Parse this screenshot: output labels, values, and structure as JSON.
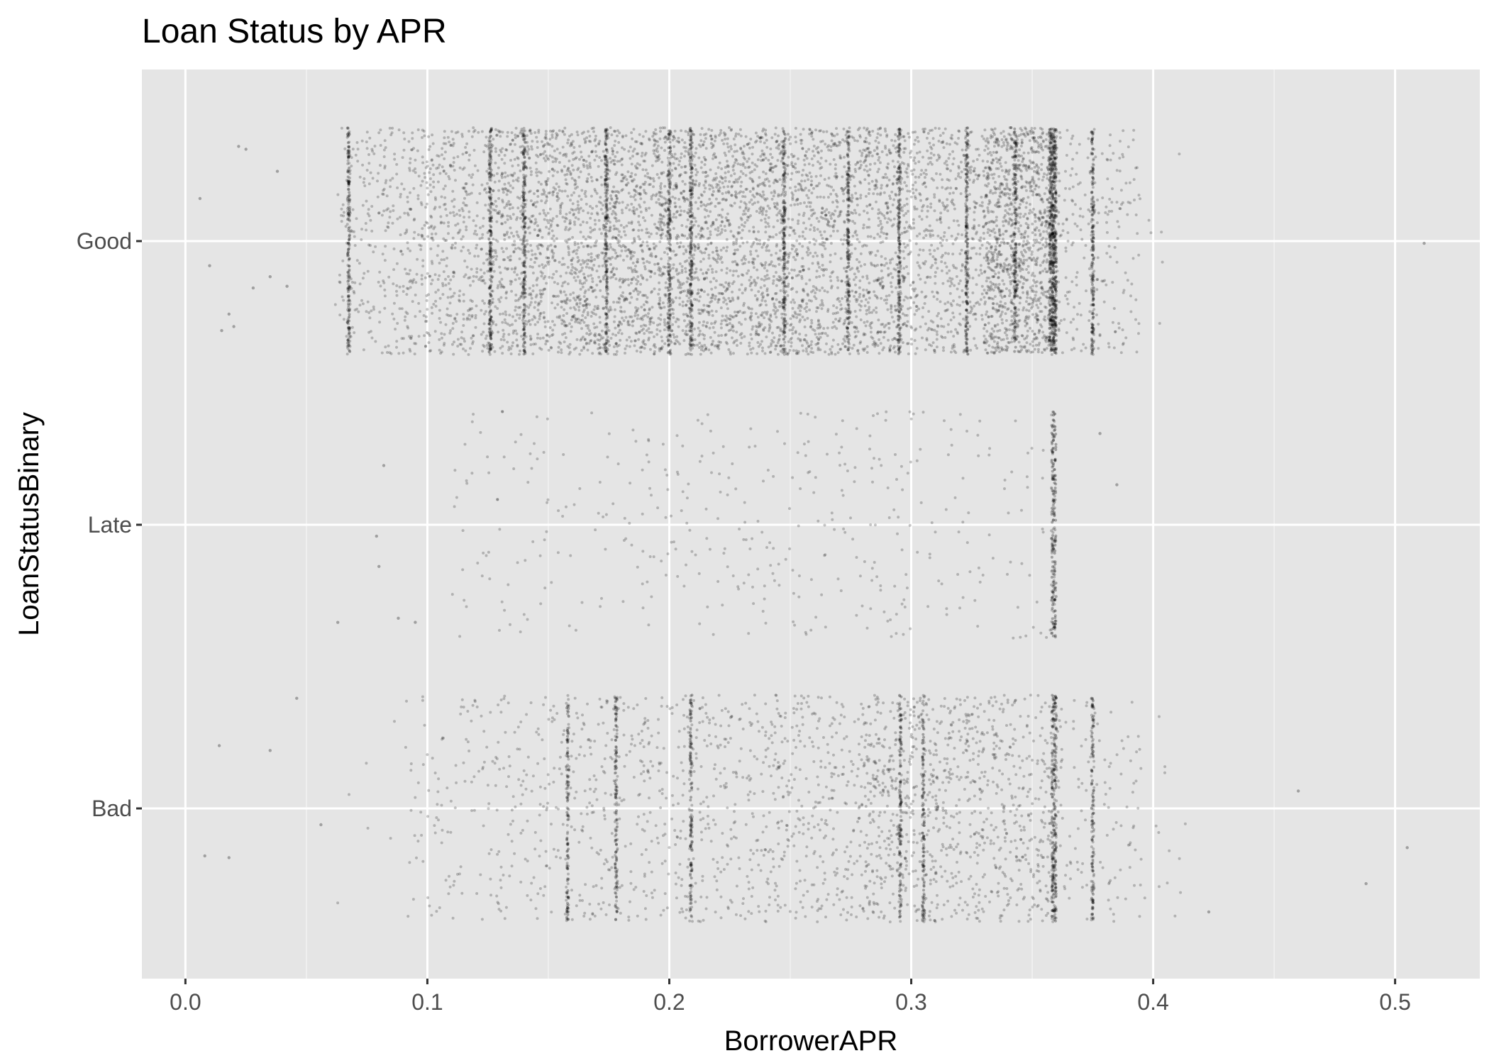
{
  "chart_data": {
    "type": "scatter",
    "title": "Loan Status by APR",
    "xlabel": "BorrowerAPR",
    "ylabel": "LoanStatusBinary",
    "xlim": [
      -0.018,
      0.535
    ],
    "x_ticks": [
      "0.0",
      "0.1",
      "0.2",
      "0.3",
      "0.4",
      "0.5"
    ],
    "categories": [
      "Good",
      "Late",
      "Bad"
    ],
    "grid": true,
    "legend": "none",
    "point_color": "#000000",
    "panel_color": "#e5e5e5",
    "series": [
      {
        "category": "Good",
        "jitter": true,
        "x_range": [
          0.006,
          0.512
        ],
        "approx_points": 72000,
        "dense_x": [
          0.0675,
          0.126,
          0.14,
          0.174,
          0.2,
          0.209,
          0.2475,
          0.274,
          0.295,
          0.323,
          0.343,
          0.3575,
          0.3585,
          0.3595,
          0.375
        ],
        "outliers_x": [
          0.006,
          0.01,
          0.015,
          0.018,
          0.02,
          0.022,
          0.025,
          0.028,
          0.035,
          0.038,
          0.042,
          0.512
        ]
      },
      {
        "category": "Late",
        "jitter": true,
        "x_range": [
          0.063,
          0.385
        ],
        "approx_points": 4000,
        "dense_x": [
          0.3585,
          0.3595
        ],
        "outliers_x": [
          0.063,
          0.079,
          0.08,
          0.082,
          0.088,
          0.095,
          0.378,
          0.385
        ]
      },
      {
        "category": "Bad",
        "jitter": true,
        "x_range": [
          0.008,
          0.505
        ],
        "approx_points": 22000,
        "dense_x": [
          0.158,
          0.178,
          0.209,
          0.2955,
          0.305,
          0.3585,
          0.3595,
          0.375
        ],
        "outliers_x": [
          0.008,
          0.014,
          0.018,
          0.035,
          0.046,
          0.056,
          0.423,
          0.46,
          0.488,
          0.505
        ]
      }
    ]
  }
}
